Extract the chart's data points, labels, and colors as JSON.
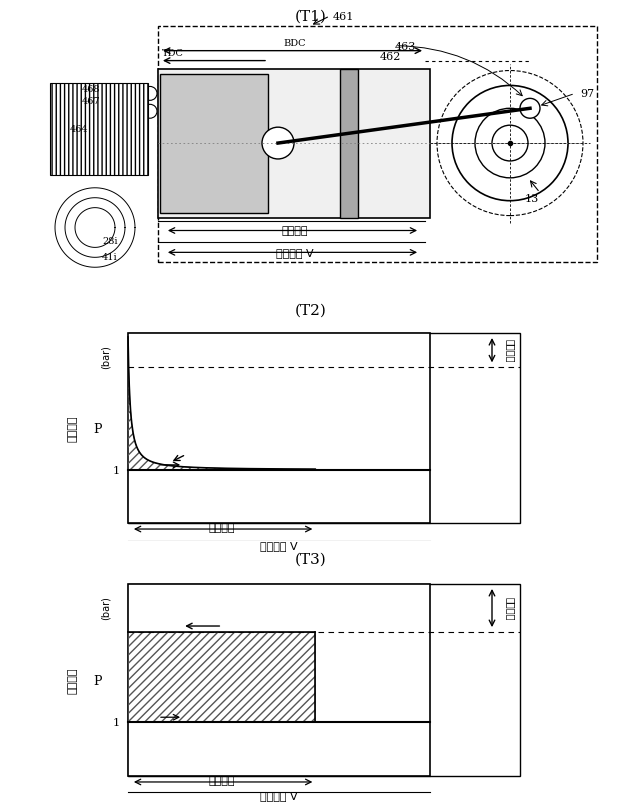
{
  "title_T1": "(T1)",
  "title_T2": "(T2)",
  "title_T3": "(T3)",
  "label_TDC": "TDC",
  "label_BDC": "BDC",
  "label_461": "461",
  "label_462": "462",
  "label_463": "463",
  "label_97": "97",
  "label_13": "13",
  "label_468": "468",
  "label_467": "467",
  "label_464": "464",
  "label_28": "28i",
  "label_41": "41i",
  "label_stroke": "行程容積",
  "label_cylinder": "筒内容積 V",
  "label_yaxis": "筒内圧力",
  "label_bar": "(bar)",
  "label_p": "P",
  "label_pressure_limit": "遠心上限",
  "label_1": "1",
  "bg_color": "#ffffff"
}
